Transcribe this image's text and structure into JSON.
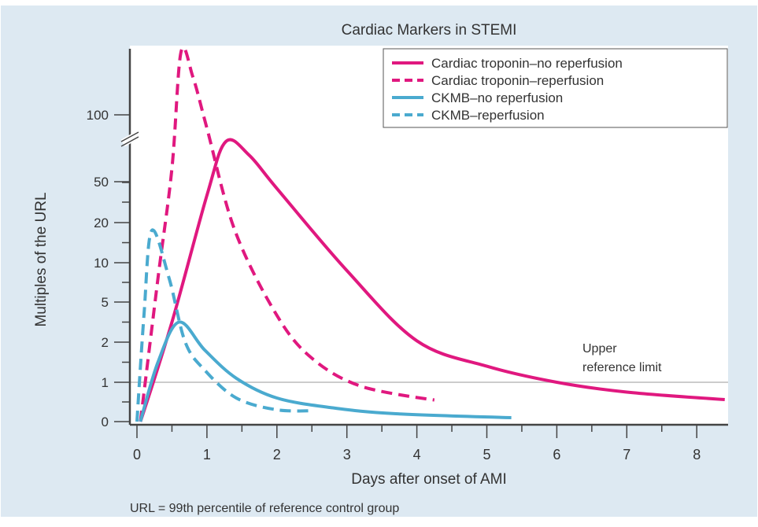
{
  "chart_data": {
    "type": "line",
    "title": "Cardiac Markers in STEMI",
    "xlabel": "Days after onset of AMI",
    "ylabel": "Multiples of the URL",
    "footnote": "URL = 99th percentile of reference control group",
    "xlim": [
      0,
      8.5
    ],
    "x_ticks": [
      "0",
      "1",
      "2",
      "3",
      "4",
      "5",
      "6",
      "7",
      "8"
    ],
    "y_ticks": [
      "0",
      "1",
      "2",
      "5",
      "10",
      "20",
      "50",
      "100"
    ],
    "y_scale": "nonlinear with axis break between 50 and 100",
    "grid": false,
    "legend_position": "top-right",
    "reference_line": {
      "value": 1,
      "label_line1": "Upper",
      "label_line2": "reference limit",
      "color": "#bbbbbb"
    },
    "series": [
      {
        "name": "Cardiac troponin–no reperfusion",
        "color": "#e0187f",
        "dash": false,
        "x": [
          0.05,
          0.5,
          1.0,
          1.27,
          1.6,
          2.0,
          3.0,
          4.0,
          5.0,
          6.0,
          7.0,
          8.4
        ],
        "y": [
          0,
          3.5,
          40,
          80,
          70,
          45,
          9,
          2.1,
          1.4,
          1.0,
          0.75,
          0.56
        ]
      },
      {
        "name": "Cardiac troponin–reperfusion",
        "color": "#e0187f",
        "dash": true,
        "x": [
          0.05,
          0.3,
          0.5,
          0.63,
          0.8,
          1.0,
          1.4,
          2.0,
          2.5,
          3.2,
          4.25
        ],
        "y": [
          0,
          8,
          60,
          150,
          130,
          90,
          18,
          4,
          1.6,
          0.9,
          0.55
        ]
      },
      {
        "name": "CKMB–no reperfusion",
        "color": "#4aaacf",
        "dash": false,
        "x": [
          0.05,
          0.3,
          0.6,
          0.97,
          1.42,
          2.0,
          2.8,
          3.7,
          5.35
        ],
        "y": [
          0,
          1.5,
          3.5,
          1.8,
          1.1,
          0.6,
          0.35,
          0.2,
          0.1
        ]
      },
      {
        "name": "CKMB–reperfusion",
        "color": "#4aaacf",
        "dash": true,
        "x": [
          0.0,
          0.1,
          0.21,
          0.46,
          0.69,
          0.97,
          1.42,
          2.0,
          2.52
        ],
        "y": [
          0,
          4,
          18,
          8,
          2,
          1.3,
          0.6,
          0.3,
          0.28
        ]
      }
    ]
  }
}
